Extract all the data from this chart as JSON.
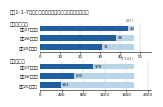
{
  "title": "図表1-1-7　地方公共団体の業務継続計画の策定状況",
  "section1_label": "【都道府県】",
  "section2_label": "【市町村】",
  "rows_pref": [
    {
      "label": "平成25年度末",
      "done": 31,
      "total": 47,
      "pct": "66%"
    },
    {
      "label": "平成26年度末",
      "done": 38,
      "total": 47,
      "pct": "81%"
    },
    {
      "label": "平成27年度末",
      "done": 44,
      "total": 47,
      "pct": "94%"
    }
  ],
  "rows_muni": [
    {
      "label": "平成25年度末",
      "done": 383,
      "total": 1741,
      "pct": "22%"
    },
    {
      "label": "平成26年度末",
      "done": 630,
      "total": 1741,
      "pct": "36%"
    },
    {
      "label": "平成27年度末",
      "done": 978,
      "total": 1741,
      "pct": "56%"
    }
  ],
  "pref_max": 47,
  "muni_max": 1741,
  "color_done": "#2060a0",
  "color_total": "#b8d4e8",
  "color_bg": "#ffffff",
  "label_fontsize": 3.2,
  "tick_fontsize": 2.8,
  "section_fontsize": 3.8,
  "title_fontsize": 3.8,
  "bar_label_fontsize": 2.8
}
